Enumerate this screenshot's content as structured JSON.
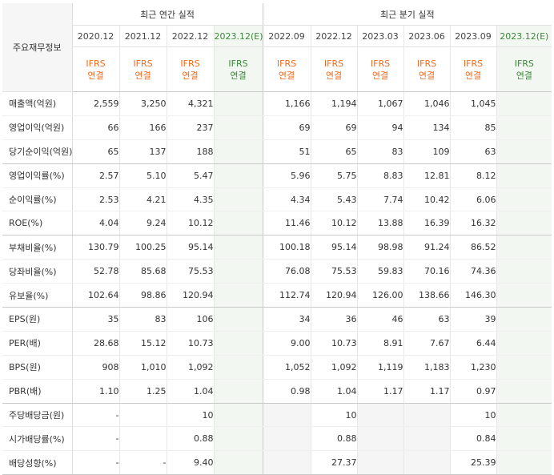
{
  "header": {
    "row_label": "주요재무정보",
    "annual_group": "최근 연간 실적",
    "quarter_group": "최근 분기 실적",
    "annual_periods": [
      "2020.12",
      "2021.12",
      "2022.12",
      "2023.12(E)"
    ],
    "quarter_periods": [
      "2022.09",
      "2022.12",
      "2023.03",
      "2023.06",
      "2023.09",
      "2023.12(E)"
    ],
    "basis_line1": "IFRS",
    "basis_line2": "연결"
  },
  "rows": [
    {
      "label": "매출액(억원)",
      "annual": [
        "2,559",
        "3,250",
        "4,321",
        ""
      ],
      "quarter": [
        "1,166",
        "1,194",
        "1,067",
        "1,046",
        "1,045",
        ""
      ]
    },
    {
      "label": "영업이익(억원)",
      "annual": [
        "66",
        "166",
        "237",
        ""
      ],
      "quarter": [
        "69",
        "69",
        "94",
        "134",
        "85",
        ""
      ]
    },
    {
      "label": "당기순이익(억원)",
      "annual": [
        "65",
        "137",
        "188",
        ""
      ],
      "quarter": [
        "51",
        "65",
        "83",
        "109",
        "63",
        ""
      ]
    },
    {
      "label": "영업이익률(%)",
      "annual": [
        "2.57",
        "5.10",
        "5.47",
        ""
      ],
      "quarter": [
        "5.96",
        "5.75",
        "8.83",
        "12.81",
        "8.12",
        ""
      ]
    },
    {
      "label": "순이익률(%)",
      "annual": [
        "2.53",
        "4.21",
        "4.35",
        ""
      ],
      "quarter": [
        "4.34",
        "5.43",
        "7.74",
        "10.42",
        "6.06",
        ""
      ]
    },
    {
      "label": "ROE(%)",
      "annual": [
        "4.04",
        "9.24",
        "10.12",
        ""
      ],
      "quarter": [
        "11.46",
        "10.12",
        "13.88",
        "16.39",
        "16.32",
        ""
      ]
    },
    {
      "label": "부채비율(%)",
      "annual": [
        "130.79",
        "100.25",
        "95.14",
        ""
      ],
      "quarter": [
        "100.18",
        "95.14",
        "98.98",
        "91.24",
        "86.52",
        ""
      ]
    },
    {
      "label": "당좌비율(%)",
      "annual": [
        "52.78",
        "85.68",
        "75.53",
        ""
      ],
      "quarter": [
        "76.08",
        "75.53",
        "59.83",
        "70.16",
        "74.36",
        ""
      ]
    },
    {
      "label": "유보율(%)",
      "annual": [
        "102.64",
        "98.86",
        "120.94",
        ""
      ],
      "quarter": [
        "112.74",
        "120.94",
        "126.00",
        "138.66",
        "146.30",
        ""
      ]
    },
    {
      "label": "EPS(원)",
      "annual": [
        "35",
        "83",
        "106",
        ""
      ],
      "quarter": [
        "34",
        "36",
        "46",
        "63",
        "39",
        ""
      ]
    },
    {
      "label": "PER(배)",
      "annual": [
        "28.68",
        "15.12",
        "10.73",
        ""
      ],
      "quarter": [
        "9.00",
        "10.73",
        "8.91",
        "7.67",
        "6.44",
        ""
      ]
    },
    {
      "label": "BPS(원)",
      "annual": [
        "908",
        "1,010",
        "1,092",
        ""
      ],
      "quarter": [
        "1,052",
        "1,092",
        "1,119",
        "1,183",
        "1,230",
        ""
      ]
    },
    {
      "label": "PBR(배)",
      "annual": [
        "1.10",
        "1.25",
        "1.04",
        ""
      ],
      "quarter": [
        "0.98",
        "1.04",
        "1.17",
        "1.17",
        "0.97",
        ""
      ]
    },
    {
      "label": "주당배당금(원)",
      "annual": [
        "-",
        "",
        "10",
        ""
      ],
      "quarter": [
        "",
        "10",
        "",
        "",
        "10",
        ""
      ]
    },
    {
      "label": "시가배당률(%)",
      "annual": [
        "-",
        "",
        "0.88",
        ""
      ],
      "quarter": [
        "",
        "0.88",
        "",
        "",
        "0.84",
        ""
      ]
    },
    {
      "label": "배당성향(%)",
      "annual": [
        "-",
        "-",
        "9.40",
        ""
      ],
      "quarter": [
        "",
        "27.37",
        "",
        "",
        "25.39",
        ""
      ]
    }
  ],
  "colors": {
    "ifrs_text": "#f26a1b",
    "estimate_text": "#3c8a3a",
    "estimate_bg": "#f2f8f1",
    "blank_bg": "#f5f5f5"
  }
}
